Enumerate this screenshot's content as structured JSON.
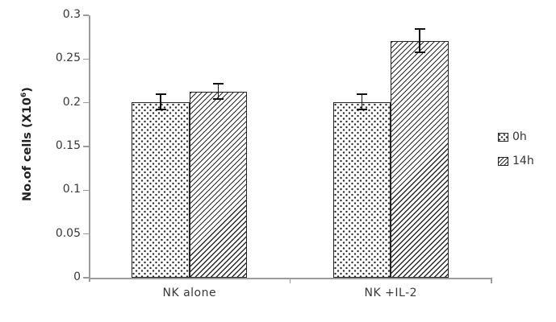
{
  "figure": {
    "background": "#ffffff",
    "axis_color": "#9b9b9b",
    "text_color": "#383838",
    "bar_border_color": "#262626",
    "error_bar_color": "#111111"
  },
  "chart_data": {
    "type": "bar",
    "title": "",
    "xlabel": "",
    "ylabel": "No.of cells (X10⁶)",
    "ylabel_parts": {
      "prefix": "No.of cells (X10",
      "sup": "6",
      "suffix": ")"
    },
    "categories": [
      "NK alone",
      "NK +IL-2"
    ],
    "series": [
      {
        "name": "0h",
        "pattern": "dots",
        "values": [
          0.201,
          0.201
        ],
        "errors": [
          0.01,
          0.01
        ]
      },
      {
        "name": "14h",
        "pattern": "hatch",
        "values": [
          0.213,
          0.271
        ],
        "errors": [
          0.01,
          0.014
        ]
      }
    ],
    "error_bars": true,
    "ylim": [
      0,
      0.3
    ],
    "yticks": [
      "0",
      "0.05",
      "0.1",
      "0.15",
      "0.2",
      "0.25",
      "0.3"
    ],
    "grid": false,
    "legend_position": "right"
  }
}
